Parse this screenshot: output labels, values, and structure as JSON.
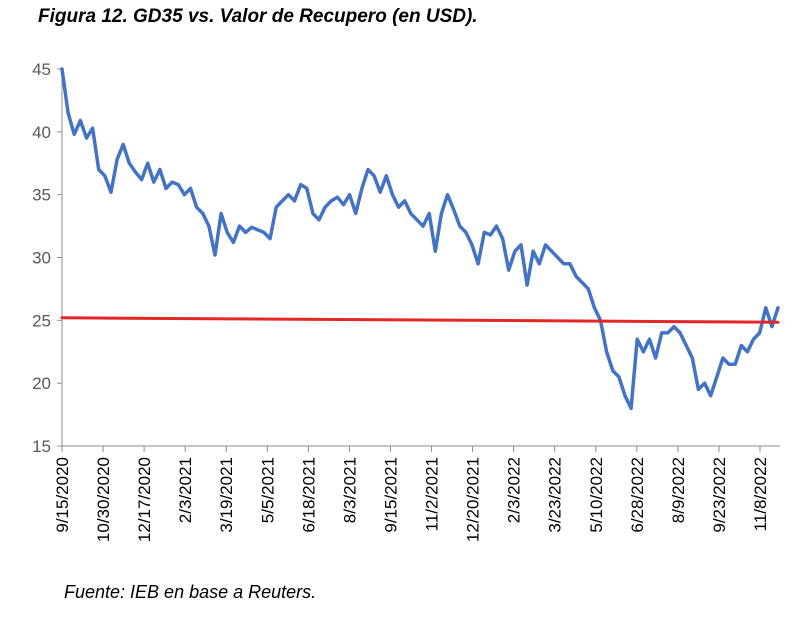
{
  "chart_data": {
    "type": "line",
    "title": "Figura 12. GD35 vs. Valor de Recupero (en USD).",
    "source": "Fuente: IEB en base a Reuters.",
    "xlabel": "",
    "ylabel": "",
    "ylim": [
      15,
      45
    ],
    "yticks": [
      "45",
      "40",
      "35",
      "30",
      "25",
      "20",
      "15"
    ],
    "x_tick_labels": [
      "9/15/2020",
      "10/30/2020",
      "12/17/2020",
      "2/3/2021",
      "3/19/2021",
      "5/5/2021",
      "6/18/2021",
      "8/3/2021",
      "9/15/2021",
      "11/2/2021",
      "12/20/2021",
      "2/3/2022",
      "3/23/2022",
      "5/10/2022",
      "6/28/2022",
      "8/9/2022",
      "9/23/2022",
      "11/8/2022"
    ],
    "series": [
      {
        "name": "GD35",
        "color": "#4472C4",
        "values": [
          45.0,
          41.5,
          39.8,
          40.9,
          39.5,
          40.3,
          37.0,
          36.5,
          35.2,
          37.8,
          39.0,
          37.5,
          36.8,
          36.2,
          37.5,
          36.0,
          37.0,
          35.5,
          36.0,
          35.8,
          35.0,
          35.5,
          34.0,
          33.5,
          32.5,
          30.2,
          33.5,
          32.0,
          31.2,
          32.5,
          32.0,
          32.4,
          32.2,
          32.0,
          31.5,
          34.0,
          34.5,
          35.0,
          34.5,
          35.8,
          35.5,
          33.5,
          33.0,
          34.0,
          34.5,
          34.8,
          34.2,
          35.0,
          33.5,
          35.5,
          37.0,
          36.5,
          35.2,
          36.5,
          35.0,
          34.0,
          34.5,
          33.5,
          33.0,
          32.5,
          33.5,
          30.5,
          33.5,
          35.0,
          33.8,
          32.5,
          32.0,
          31.0,
          29.5,
          32.0,
          31.8,
          32.5,
          31.5,
          29.0,
          30.5,
          31.0,
          27.8,
          30.5,
          29.5,
          31.0,
          30.5,
          30.0,
          29.5,
          29.5,
          28.5,
          28.0,
          27.5,
          26.0,
          25.0,
          22.5,
          21.0,
          20.5,
          19.0,
          18.0,
          23.5,
          22.5,
          23.5,
          22.0,
          24.0,
          24.0,
          24.5,
          24.0,
          23.0,
          22.0,
          19.5,
          20.0,
          19.0,
          20.5,
          22.0,
          21.5,
          21.5,
          23.0,
          22.5,
          23.5,
          24.0,
          26.0,
          24.5,
          26.0
        ]
      },
      {
        "name": "Valor de Recupero",
        "color": "#E32626",
        "values": [
          25.2,
          24.85
        ]
      }
    ]
  }
}
